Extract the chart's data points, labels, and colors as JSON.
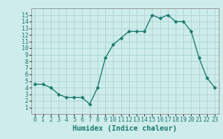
{
  "x": [
    0,
    1,
    2,
    3,
    4,
    5,
    6,
    7,
    8,
    9,
    10,
    11,
    12,
    13,
    14,
    15,
    16,
    17,
    18,
    19,
    20,
    21,
    22,
    23
  ],
  "y": [
    4.5,
    4.5,
    4.0,
    3.0,
    2.5,
    2.5,
    2.5,
    1.5,
    4.0,
    8.5,
    10.5,
    11.5,
    12.5,
    12.5,
    12.5,
    15.0,
    14.5,
    15.0,
    14.0,
    14.0,
    12.5,
    8.5,
    5.5,
    4.0
  ],
  "line_color": "#1a7a6e",
  "marker": "D",
  "marker_size": 2.5,
  "linewidth": 1.0,
  "xlabel": "Humidex (Indice chaleur)",
  "xlim": [
    -0.5,
    23.5
  ],
  "ylim": [
    0,
    16
  ],
  "yticks": [
    1,
    2,
    3,
    4,
    5,
    6,
    7,
    8,
    9,
    10,
    11,
    12,
    13,
    14,
    15
  ],
  "xticks": [
    0,
    1,
    2,
    3,
    4,
    5,
    6,
    7,
    8,
    9,
    10,
    11,
    12,
    13,
    14,
    15,
    16,
    17,
    18,
    19,
    20,
    21,
    22,
    23
  ],
  "bg_color": "#ceecea",
  "grid_color": "#aad4d0",
  "label_fontsize": 7.5,
  "tick_fontsize": 6.0
}
